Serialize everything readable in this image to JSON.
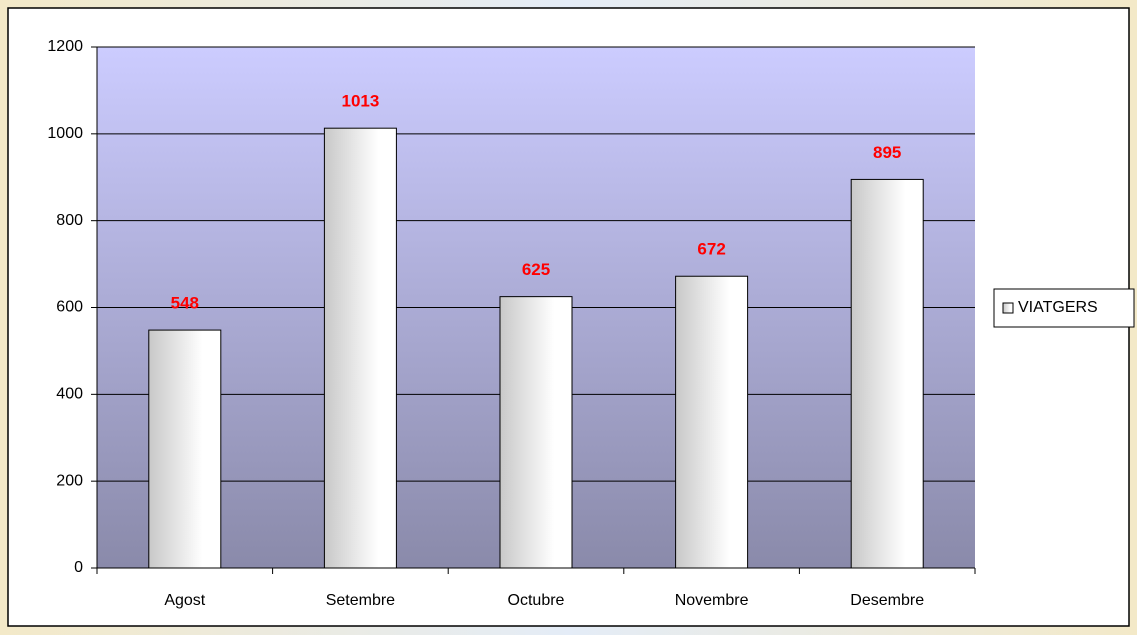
{
  "chart_data": {
    "type": "bar",
    "categories": [
      "Agost",
      "Setembre",
      "Octubre",
      "Novembre",
      "Desembre"
    ],
    "series": [
      {
        "name": "VIATGERS",
        "color": "#c8c8c8",
        "values": [
          548,
          1013,
          625,
          672,
          895
        ]
      }
    ],
    "label_color": "#ff0000",
    "ylim": [
      0,
      1200
    ],
    "yticks": [
      0,
      200,
      400,
      600,
      800,
      1000,
      1200
    ],
    "grid": true,
    "legend": "right"
  }
}
